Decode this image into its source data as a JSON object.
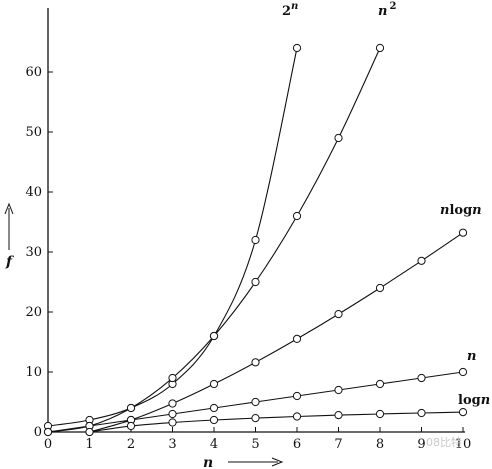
{
  "chart_data": {
    "type": "line",
    "title": "",
    "xlabel": "n",
    "ylabel": "f",
    "xlim": [
      0,
      10
    ],
    "ylim": [
      0,
      64
    ],
    "xticks": [
      "0",
      "1",
      "2",
      "3",
      "4",
      "5",
      "6",
      "7",
      "8",
      "9",
      "10"
    ],
    "yticks": [
      "0",
      "10",
      "20",
      "30",
      "40",
      "50",
      "60"
    ],
    "grid": false,
    "marker": "open-circle",
    "series": [
      {
        "name": "2^n",
        "label_main": "2",
        "label_sup": "n",
        "x": [
          0,
          1,
          2,
          3,
          4,
          5,
          6
        ],
        "y": [
          1,
          2,
          4,
          8,
          16,
          32,
          64
        ]
      },
      {
        "name": "n^2",
        "label_main": "n",
        "label_sup": "2",
        "x": [
          0,
          1,
          2,
          3,
          4,
          5,
          6,
          7,
          8
        ],
        "y": [
          0,
          1,
          4,
          9,
          16,
          25,
          36,
          49,
          64
        ]
      },
      {
        "name": "nlogn",
        "label_main": "n",
        "label_rest": "log",
        "label_tail": "n",
        "x": [
          1,
          2,
          3,
          4,
          5,
          6,
          7,
          8,
          9,
          10
        ],
        "y": [
          0,
          2,
          4.75,
          8,
          11.61,
          15.51,
          19.65,
          24,
          28.53,
          33.22
        ]
      },
      {
        "name": "n",
        "label_main": "n",
        "x": [
          0,
          1,
          2,
          3,
          4,
          5,
          6,
          7,
          8,
          9,
          10
        ],
        "y": [
          0,
          1,
          2,
          3,
          4,
          5,
          6,
          7,
          8,
          9,
          10
        ]
      },
      {
        "name": "logn",
        "label_rest": "log",
        "label_tail": "n",
        "x": [
          1,
          2,
          3,
          4,
          5,
          6,
          7,
          8,
          9,
          10
        ],
        "y": [
          0,
          1,
          1.58,
          2,
          2.32,
          2.58,
          2.81,
          3,
          3.17,
          3.32
        ]
      }
    ]
  },
  "watermark": "08比特"
}
